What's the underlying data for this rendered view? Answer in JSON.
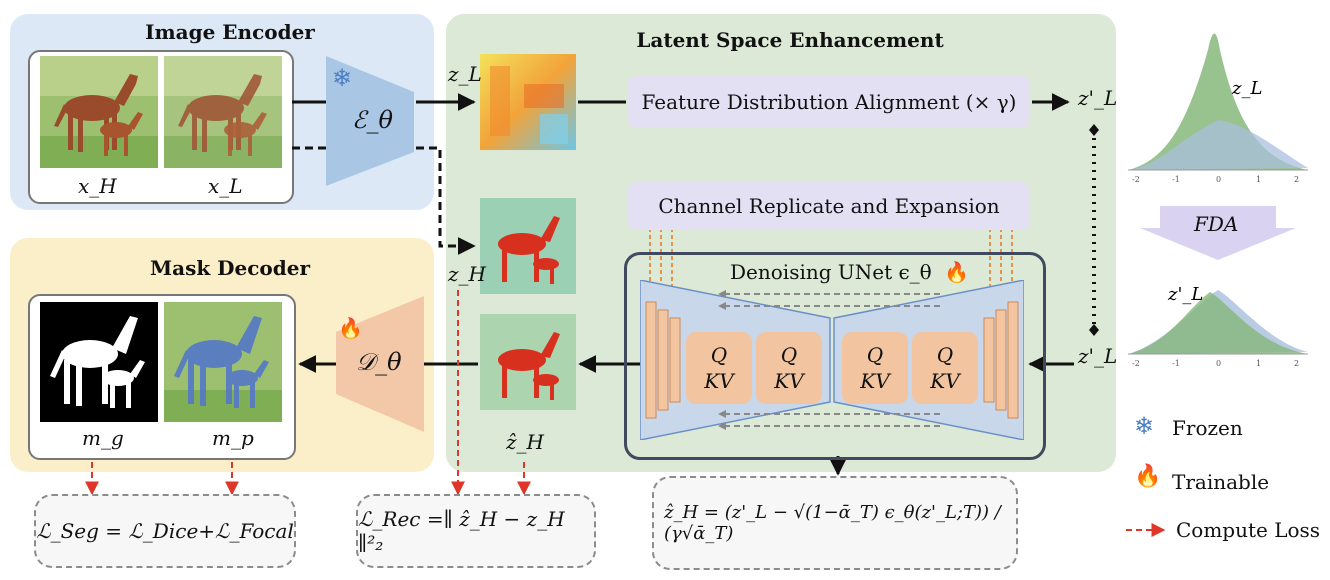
{
  "panels": {
    "image_encoder": {
      "title": "Image Encoder"
    },
    "latent_enhancement": {
      "title": "Latent Space Enhancement"
    },
    "mask_decoder": {
      "title": "Mask Decoder"
    }
  },
  "labels": {
    "x_h": "x_H",
    "x_l": "x_L",
    "encoder": "ℰ_θ",
    "decoder": "𝒟_θ",
    "z_l": "z_L",
    "z_h": "z_H",
    "z_hat_h": "ẑ_H",
    "z_l_prime_top": "z'_L",
    "z_l_prime_bottom": "z'_L",
    "m_g": "m_g",
    "m_p": "m_p"
  },
  "boxes": {
    "fda": "Feature Distribution Alignment (× γ)",
    "cre": "Channel Replicate and Expansion",
    "unet": "Denoising UNet ϵ_θ",
    "attn_q": "Q",
    "attn_kv": "KV"
  },
  "losses": {
    "seg": "ℒ_Seg = ℒ_Dice+ℒ_Focal",
    "rec": "ℒ_Rec =∥ ẑ_H − z_H ∥²₂",
    "pred": "ẑ_H = (z'_L − √(1−ᾱ_T) ϵ_θ(z'_L;T)) / (γ√ᾱ_T)"
  },
  "distribution": {
    "top_label": "z_L",
    "bottom_label": "z'_L",
    "arrow_label": "FDA",
    "ticks": [
      "-2",
      "-1",
      "0",
      "1",
      "2"
    ]
  },
  "legend": {
    "frozen": "Frozen",
    "trainable": "Trainable",
    "compute_loss": "Compute Loss"
  },
  "colors": {
    "encoder_bg": "#dce8f5",
    "latent_bg": "#dbe9d6",
    "decoder_bg": "#fbefc9",
    "encoder_shape": "#a9c6e4",
    "decoder_shape": "#f2c8a8",
    "loss_arrow": "#e0362a",
    "green_dist": "#86b77a",
    "blue_dist": "#a9bfdc"
  }
}
